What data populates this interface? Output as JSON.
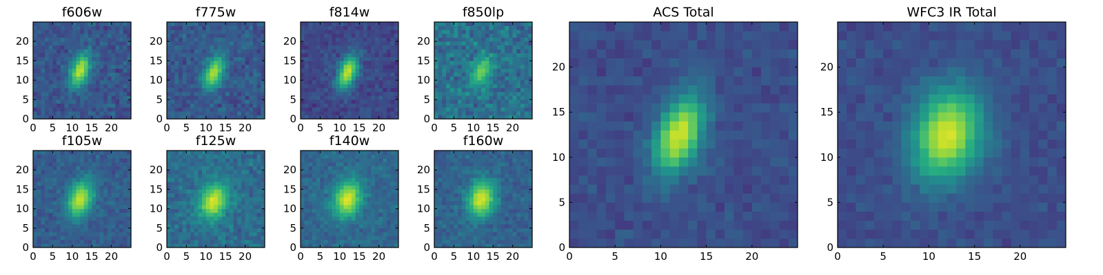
{
  "chart_data": [
    {
      "type": "heatmap",
      "title": "f606w",
      "xlim": [
        0,
        25
      ],
      "ylim": [
        0,
        25
      ],
      "xticks": [
        "0",
        "5",
        "10",
        "15",
        "20"
      ],
      "yticks": [
        "0",
        "5",
        "10",
        "15",
        "20"
      ],
      "colormap": "viridis",
      "source": {
        "center": [
          12,
          12.5
        ],
        "sigma_major": 3.2,
        "sigma_minor": 1.6,
        "angle_deg": 20,
        "peak": 0.92,
        "background": 0.27,
        "noise": 0.12
      }
    },
    {
      "type": "heatmap",
      "title": "f775w",
      "xlim": [
        0,
        25
      ],
      "ylim": [
        0,
        25
      ],
      "xticks": [
        "0",
        "5",
        "10",
        "15",
        "20"
      ],
      "yticks": [
        "0",
        "5",
        "10",
        "15",
        "20"
      ],
      "colormap": "viridis",
      "source": {
        "center": [
          12,
          12
        ],
        "sigma_major": 3.2,
        "sigma_minor": 1.6,
        "angle_deg": 20,
        "peak": 0.88,
        "background": 0.28,
        "noise": 0.12
      }
    },
    {
      "type": "heatmap",
      "title": "f814w",
      "xlim": [
        0,
        25
      ],
      "ylim": [
        0,
        25
      ],
      "xticks": [
        "0",
        "5",
        "10",
        "15",
        "20"
      ],
      "yticks": [
        "0",
        "5",
        "10",
        "15",
        "20"
      ],
      "colormap": "viridis",
      "source": {
        "center": [
          12,
          12
        ],
        "sigma_major": 3.2,
        "sigma_minor": 1.6,
        "angle_deg": 20,
        "peak": 0.92,
        "background": 0.22,
        "noise": 0.1
      }
    },
    {
      "type": "heatmap",
      "title": "f850lp",
      "xlim": [
        0,
        25
      ],
      "ylim": [
        0,
        25
      ],
      "xticks": [
        "0",
        "5",
        "10",
        "15",
        "20"
      ],
      "yticks": [
        "0",
        "5",
        "10",
        "15",
        "20"
      ],
      "colormap": "viridis",
      "source": {
        "center": [
          12,
          12
        ],
        "sigma_major": 3.0,
        "sigma_minor": 1.6,
        "angle_deg": 20,
        "peak": 0.78,
        "background": 0.38,
        "noise": 0.17
      }
    },
    {
      "type": "heatmap",
      "title": "f105w",
      "xlim": [
        0,
        25
      ],
      "ylim": [
        0,
        25
      ],
      "xticks": [
        "0",
        "5",
        "10",
        "15",
        "20"
      ],
      "yticks": [
        "0",
        "5",
        "10",
        "15",
        "20"
      ],
      "colormap": "viridis",
      "source": {
        "center": [
          12,
          12.5
        ],
        "sigma_major": 3.4,
        "sigma_minor": 2.2,
        "angle_deg": 20,
        "peak": 0.92,
        "background": 0.3,
        "noise": 0.1
      }
    },
    {
      "type": "heatmap",
      "title": "f125w",
      "xlim": [
        0,
        25
      ],
      "ylim": [
        0,
        25
      ],
      "xticks": [
        "0",
        "5",
        "10",
        "15",
        "20"
      ],
      "yticks": [
        "0",
        "5",
        "10",
        "15",
        "20"
      ],
      "colormap": "viridis",
      "source": {
        "center": [
          12,
          12
        ],
        "sigma_major": 3.4,
        "sigma_minor": 2.4,
        "angle_deg": 20,
        "peak": 0.95,
        "background": 0.36,
        "noise": 0.12
      }
    },
    {
      "type": "heatmap",
      "title": "f140w",
      "xlim": [
        0,
        25
      ],
      "ylim": [
        0,
        25
      ],
      "xticks": [
        "0",
        "5",
        "10",
        "15",
        "20"
      ],
      "yticks": [
        "0",
        "5",
        "10",
        "15",
        "20"
      ],
      "colormap": "viridis",
      "source": {
        "center": [
          12,
          12.5
        ],
        "sigma_major": 3.4,
        "sigma_minor": 2.4,
        "angle_deg": 15,
        "peak": 0.95,
        "background": 0.34,
        "noise": 0.1
      }
    },
    {
      "type": "heatmap",
      "title": "f160w",
      "xlim": [
        0,
        25
      ],
      "ylim": [
        0,
        25
      ],
      "xticks": [
        "0",
        "5",
        "10",
        "15",
        "20"
      ],
      "yticks": [
        "0",
        "5",
        "10",
        "15",
        "20"
      ],
      "colormap": "viridis",
      "source": {
        "center": [
          12,
          12.5
        ],
        "sigma_major": 3.4,
        "sigma_minor": 2.4,
        "angle_deg": 15,
        "peak": 0.95,
        "background": 0.32,
        "noise": 0.1
      }
    },
    {
      "type": "heatmap",
      "title": "ACS Total",
      "xlim": [
        0,
        25
      ],
      "ylim": [
        0,
        25
      ],
      "xticks": [
        "0",
        "5",
        "10",
        "15",
        "20"
      ],
      "yticks": [
        "0",
        "5",
        "10",
        "15",
        "20"
      ],
      "colormap": "viridis",
      "source": {
        "center": [
          12,
          12.5
        ],
        "sigma_major": 3.2,
        "sigma_minor": 1.7,
        "angle_deg": 20,
        "peak": 0.95,
        "background": 0.24,
        "noise": 0.08
      }
    },
    {
      "type": "heatmap",
      "title": "WFC3 IR Total",
      "xlim": [
        0,
        25
      ],
      "ylim": [
        0,
        25
      ],
      "xticks": [
        "0",
        "5",
        "10",
        "15",
        "20"
      ],
      "yticks": [
        "0",
        "5",
        "10",
        "15",
        "20"
      ],
      "colormap": "viridis",
      "source": {
        "center": [
          12,
          12.5
        ],
        "sigma_major": 3.6,
        "sigma_minor": 2.6,
        "angle_deg": 15,
        "peak": 0.95,
        "background": 0.24,
        "noise": 0.07
      }
    }
  ]
}
